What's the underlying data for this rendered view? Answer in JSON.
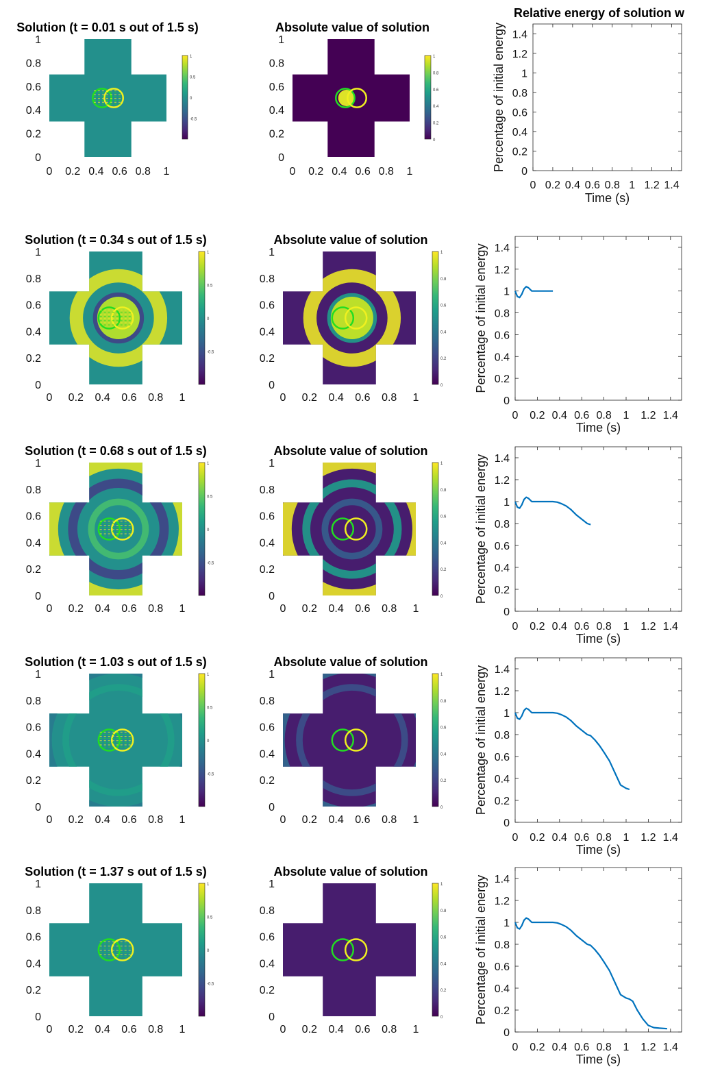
{
  "colors": {
    "viridis": [
      "#440154",
      "#482878",
      "#3e4989",
      "#31688e",
      "#26828e",
      "#1f9e89",
      "#35b779",
      "#6ece58",
      "#b5de2b",
      "#fde725"
    ],
    "energy_line": "#0072bd",
    "circle_green": "#22dd22",
    "circle_yellow": "#f0f020",
    "cross_mid": "#2a7f8b"
  },
  "energy_axis": {
    "xlabel": "Time (s)",
    "ylabel": "Percentage of initial energy",
    "xticks": [
      "0",
      "0.2",
      "0.4",
      "0.6",
      "0.8",
      "1",
      "1.2",
      "1.4"
    ],
    "yticks": [
      "0",
      "0.2",
      "0.4",
      "0.6",
      "0.8",
      "1",
      "1.2",
      "1.4"
    ],
    "xlim": [
      0,
      1.5
    ],
    "ylim": [
      0,
      1.5
    ]
  },
  "map_axis": {
    "ticks": [
      "0",
      "0.2",
      "0.4",
      "0.6",
      "0.8",
      "1"
    ],
    "cb_solution_ticks": [
      "1",
      "0.5",
      "0",
      "-0.5"
    ],
    "cb_abs_ticks": [
      "1",
      "0.8",
      "0.6",
      "0.4",
      "0.2",
      "0"
    ]
  },
  "energy_title": "Relative energy of solution w",
  "abs_title": "Absolute value of solution",
  "rows": [
    {
      "solution_title": "Solution (t = 0.01 s out of 1.5 s)",
      "t": 0.01
    },
    {
      "solution_title": "Solution (t = 0.34 s out of 1.5 s)",
      "t": 0.34
    },
    {
      "solution_title": "Solution (t = 0.68 s out of 1.5 s)",
      "t": 0.68
    },
    {
      "solution_title": "Solution (t = 1.03 s out of 1.5 s)",
      "t": 1.03
    },
    {
      "solution_title": "Solution (t = 1.37 s out of 1.5 s)",
      "t": 1.37
    }
  ],
  "chart_data": {
    "type": "line",
    "title": "Relative energy of solution w",
    "xlabel": "Time (s)",
    "ylabel": "Percentage of initial energy",
    "xlim": [
      0,
      1.5
    ],
    "ylim": [
      0,
      1.5
    ],
    "series": [
      {
        "x": [
          0.0,
          0.02,
          0.04,
          0.06,
          0.08,
          0.1,
          0.12,
          0.15,
          0.2,
          0.25,
          0.3,
          0.34,
          0.38,
          0.42,
          0.46,
          0.5,
          0.55,
          0.6,
          0.65,
          0.68,
          0.72,
          0.76,
          0.8,
          0.85,
          0.9,
          0.95,
          1.0,
          1.03,
          1.06,
          1.1,
          1.15,
          1.2,
          1.25,
          1.3,
          1.37
        ],
        "y": [
          1.0,
          0.95,
          0.94,
          0.97,
          1.02,
          1.04,
          1.03,
          1.0,
          1.0,
          1.0,
          1.0,
          1.0,
          0.995,
          0.98,
          0.96,
          0.93,
          0.88,
          0.84,
          0.8,
          0.79,
          0.75,
          0.7,
          0.64,
          0.56,
          0.45,
          0.34,
          0.31,
          0.3,
          0.28,
          0.2,
          0.12,
          0.06,
          0.04,
          0.035,
          0.03
        ]
      }
    ]
  }
}
